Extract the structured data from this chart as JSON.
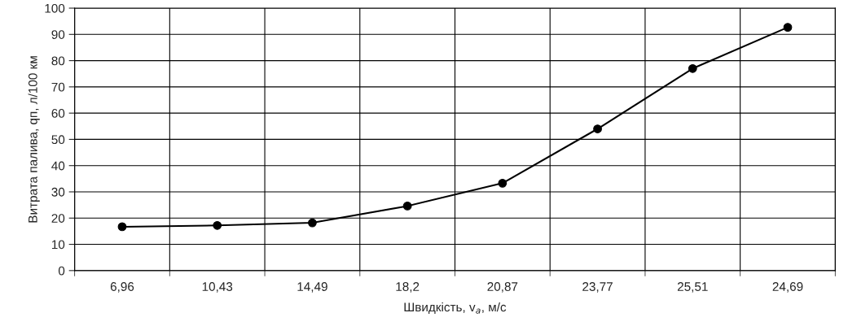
{
  "chart_data": {
    "type": "line",
    "xlabel": "Швидкість, v$_{a}$, м/с",
    "ylabel": "Витрата палива, qп, л/100 км",
    "categories": [
      "6,96",
      "10,43",
      "14,49",
      "18,2",
      "20,87",
      "23,77",
      "25,51",
      "24,69"
    ],
    "series": [
      {
        "color": "#000000",
        "values": [
          16.7,
          17.2,
          18.2,
          24.6,
          33.3,
          54,
          77,
          92.7
        ]
      }
    ],
    "ylim": [
      0,
      100
    ],
    "yticks": [
      0,
      10,
      20,
      30,
      40,
      50,
      60,
      70,
      80,
      90,
      100
    ],
    "grid": true,
    "marker": "circle",
    "line_style": "solid"
  }
}
